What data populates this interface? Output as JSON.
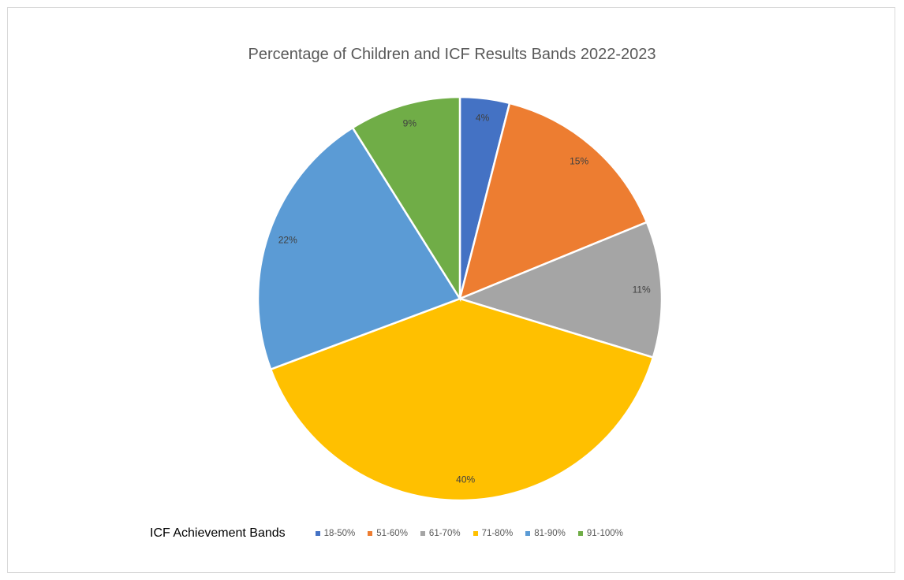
{
  "chart_data": {
    "type": "pie",
    "title": "Percentage of Children and ICF Results Bands 2022-2023",
    "legend_title": "ICF Achievement Bands",
    "legend_position": "bottom",
    "slices": [
      {
        "label": "18-50%",
        "value": 4,
        "display": "4%",
        "color": "#4472C4"
      },
      {
        "label": "51-60%",
        "value": 15,
        "display": "15%",
        "color": "#ED7D31"
      },
      {
        "label": "61-70%",
        "value": 11,
        "display": "11%",
        "color": "#A5A5A5"
      },
      {
        "label": "71-80%",
        "value": 40,
        "display": "40%",
        "color": "#FFC000"
      },
      {
        "label": "81-90%",
        "value": 22,
        "display": "22%",
        "color": "#5B9BD5"
      },
      {
        "label": "91-100%",
        "value": 9,
        "display": "9%",
        "color": "#70AD47"
      }
    ]
  }
}
